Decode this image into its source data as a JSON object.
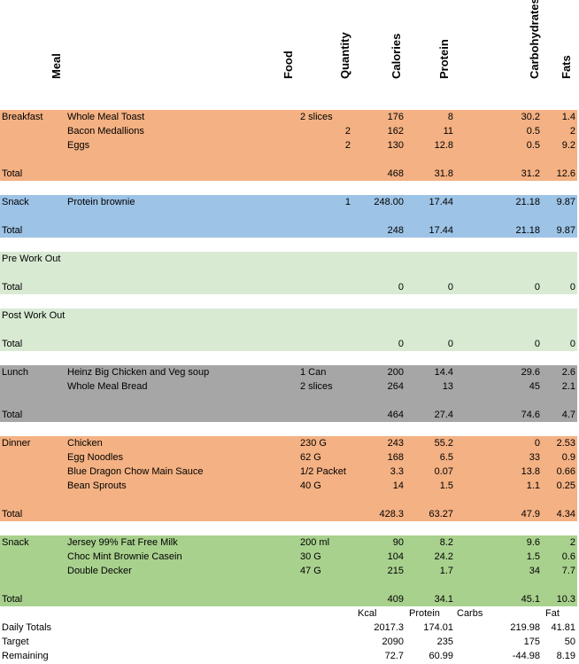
{
  "headers": {
    "meal": "Meal",
    "food": "Food",
    "quantity": "Quantity",
    "calories": "Calories",
    "protein": "Protein",
    "carbohydrates": "Carbohydrates",
    "fats": "Fats"
  },
  "sections": [
    {
      "color": "#f4b183",
      "rows": [
        {
          "meal": "Breakfast",
          "food": "Whole Meal Toast",
          "unit": "2 slices",
          "qty": "",
          "cal": "176",
          "pro": "8",
          "carb": "30.2",
          "fat": "1.4"
        },
        {
          "meal": "",
          "food": "Bacon Medallions",
          "unit": "",
          "qty": "2",
          "cal": "162",
          "pro": "11",
          "carb": "0.5",
          "fat": "2"
        },
        {
          "meal": "",
          "food": "Eggs",
          "unit": "",
          "qty": "2",
          "cal": "130",
          "pro": "12.8",
          "carb": "0.5",
          "fat": "9.2"
        }
      ],
      "total": {
        "label": "Total",
        "cal": "468",
        "pro": "31.8",
        "carb": "31.2",
        "fat": "12.6"
      }
    },
    {
      "color": "#9dc3e6",
      "rows": [
        {
          "meal": "Snack",
          "food": "Protein brownie",
          "unit": "",
          "qty": "1",
          "cal": "248.00",
          "pro": "17.44",
          "carb": "21.18",
          "fat": "9.87"
        }
      ],
      "total": {
        "label": "Total",
        "cal": "248",
        "pro": "17.44",
        "carb": "21.18",
        "fat": "9.87"
      }
    },
    {
      "color": "#d9ead3",
      "rows": [
        {
          "meal": "Pre Work Out",
          "food": "",
          "unit": "",
          "qty": "",
          "cal": "",
          "pro": "",
          "carb": "",
          "fat": ""
        }
      ],
      "total": {
        "label": "Total",
        "cal": "0",
        "pro": "0",
        "carb": "0",
        "fat": "0"
      }
    },
    {
      "color": "#d9ead3",
      "rows": [
        {
          "meal": "Post Work Out",
          "food": "",
          "unit": "",
          "qty": "",
          "cal": "",
          "pro": "",
          "carb": "",
          "fat": ""
        }
      ],
      "total": {
        "label": "Total",
        "cal": "0",
        "pro": "0",
        "carb": "0",
        "fat": "0"
      }
    },
    {
      "color": "#a6a6a6",
      "rows": [
        {
          "meal": "Lunch",
          "food": "Heinz Big Chicken and Veg soup",
          "unit": "1 Can",
          "qty": "",
          "cal": "200",
          "pro": "14.4",
          "carb": "29.6",
          "fat": "2.6"
        },
        {
          "meal": "",
          "food": "Whole Meal Bread",
          "unit": "2 slices",
          "qty": "",
          "cal": "264",
          "pro": "13",
          "carb": "45",
          "fat": "2.1"
        }
      ],
      "total": {
        "label": "Total",
        "cal": "464",
        "pro": "27.4",
        "carb": "74.6",
        "fat": "4.7"
      }
    },
    {
      "color": "#f4b183",
      "rows": [
        {
          "meal": "Dinner",
          "food": "Chicken",
          "unit": "230 G",
          "qty": "",
          "cal": "243",
          "pro": "55.2",
          "carb": "0",
          "fat": "2.53"
        },
        {
          "meal": "",
          "food": "Egg Noodles",
          "unit": "62 G",
          "qty": "",
          "cal": "168",
          "pro": "6.5",
          "carb": "33",
          "fat": "0.9"
        },
        {
          "meal": "",
          "food": "Blue Dragon Chow Main Sauce",
          "unit": "1/2 Packet",
          "qty": "",
          "cal": "3.3",
          "pro": "0.07",
          "carb": "13.8",
          "fat": "0.66"
        },
        {
          "meal": "",
          "food": "Bean Sprouts",
          "unit": "40 G",
          "qty": "",
          "cal": "14",
          "pro": "1.5",
          "carb": "1.1",
          "fat": "0.25"
        }
      ],
      "total": {
        "label": "Total",
        "cal": "428.3",
        "pro": "63.27",
        "carb": "47.9",
        "fat": "4.34"
      }
    },
    {
      "color": "#a9d18e",
      "rows": [
        {
          "meal": "Snack",
          "food": "Jersey 99% Fat Free Milk",
          "unit": "200 ml",
          "qty": "",
          "cal": "90",
          "pro": "8.2",
          "carb": "9.6",
          "fat": "2"
        },
        {
          "meal": "",
          "food": "Choc Mint Brownie Casein",
          "unit": "30 G",
          "qty": "",
          "cal": "104",
          "pro": "24.2",
          "carb": "1.5",
          "fat": "0.6"
        },
        {
          "meal": "",
          "food": "Double Decker",
          "unit": "47  G",
          "qty": "",
          "cal": "215",
          "pro": "1.7",
          "carb": "34",
          "fat": "7.7"
        }
      ],
      "total": {
        "label": "Total",
        "cal": "409",
        "pro": "34.1",
        "carb": "45.1",
        "fat": "10.3"
      }
    }
  ],
  "summary": {
    "labels": {
      "kcal": "Kcal",
      "protein": "Protein",
      "carbs": "Carbs",
      "fat": "Fat"
    },
    "rows": [
      {
        "label": "Daily Totals",
        "cal": "2017.3",
        "pro": "174.01",
        "carb": "219.98",
        "fat": "41.81"
      },
      {
        "label": "Target",
        "cal": "2090",
        "pro": "235",
        "carb": "175",
        "fat": "50"
      },
      {
        "label": "Remaining",
        "cal": "72.7",
        "pro": "60.99",
        "carb": "-44.98",
        "fat": "8.19"
      }
    ]
  }
}
